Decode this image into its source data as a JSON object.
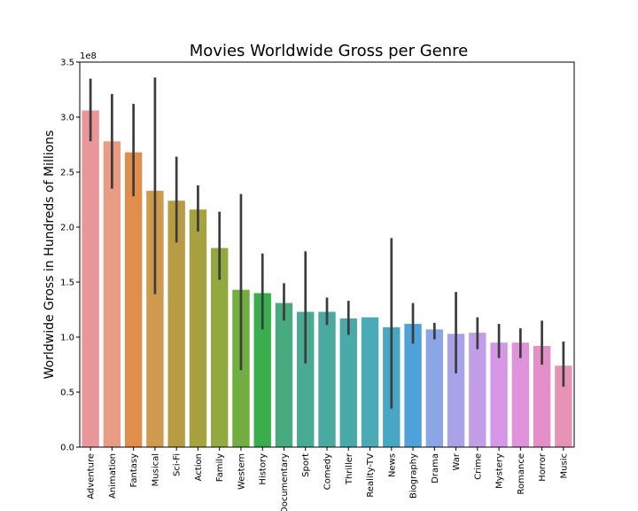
{
  "chart_data": {
    "type": "bar",
    "title": "Movies Worldwide Gross per Genre",
    "xlabel": "",
    "ylabel": "Worldwide Gross in Hundreds of Millions",
    "y_offset_text": "1e8",
    "ylim": [
      0,
      3.5
    ],
    "yticks": [
      "0.0",
      "0.5",
      "1.0",
      "1.5",
      "2.0",
      "2.5",
      "3.0",
      "3.5"
    ],
    "grid": false,
    "legend": "none",
    "error_bars": true,
    "categories": [
      "Adventure",
      "Animation",
      "Fantasy",
      "Musical",
      "Sci-Fi",
      "Action",
      "Family",
      "Western",
      "History",
      "Documentary",
      "Sport",
      "Comedy",
      "Thriller",
      "Reality-TV",
      "News",
      "Biography",
      "Drama",
      "War",
      "Crime",
      "Mystery",
      "Romance",
      "Horror",
      "Music"
    ],
    "values": [
      3.06,
      2.78,
      2.68,
      2.33,
      2.24,
      2.16,
      1.81,
      1.43,
      1.4,
      1.31,
      1.23,
      1.23,
      1.17,
      1.18,
      1.09,
      1.12,
      1.07,
      1.03,
      1.04,
      0.95,
      0.95,
      0.92,
      0.74
    ],
    "err_low": [
      2.78,
      2.35,
      2.28,
      1.39,
      1.86,
      1.96,
      1.52,
      0.7,
      1.07,
      1.15,
      0.76,
      1.11,
      1.02,
      null,
      0.35,
      0.94,
      0.98,
      0.67,
      0.89,
      0.81,
      0.81,
      0.75,
      0.55
    ],
    "err_high": [
      3.35,
      3.21,
      3.12,
      3.36,
      2.64,
      2.38,
      2.14,
      2.3,
      1.76,
      1.49,
      1.78,
      1.36,
      1.33,
      null,
      1.9,
      1.31,
      1.13,
      1.41,
      1.18,
      1.12,
      1.08,
      1.15,
      0.96
    ],
    "colors": [
      "#e9969a",
      "#e99c84",
      "#e18e4c",
      "#cd9a4e",
      "#b89c44",
      "#a7a23f",
      "#91a93f",
      "#71ae3f",
      "#3aae4c",
      "#47ab7f",
      "#49ab93",
      "#4aaa9f",
      "#4aaaa9",
      "#4aabb6",
      "#48a7c4",
      "#4ea2d9",
      "#8aa6e4",
      "#a8a2e8",
      "#c29ee9",
      "#d597e6",
      "#e092db",
      "#e58fc8",
      "#e793b7"
    ]
  }
}
